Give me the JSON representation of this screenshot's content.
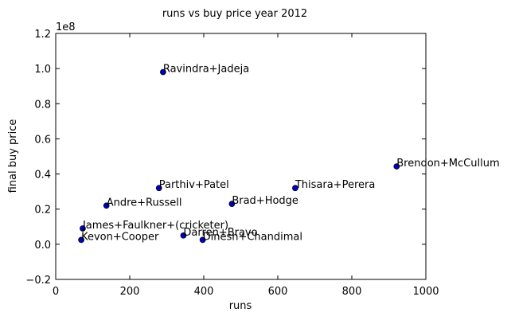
{
  "chart_data": {
    "type": "scatter",
    "title": "runs vs buy price year 2012",
    "xlabel": "runs",
    "ylabel": "final buy price",
    "y_offset_label": "1e8",
    "xlim": [
      0,
      1000
    ],
    "ylim": [
      -0.2,
      1.2
    ],
    "x_ticks": [
      "0",
      "200",
      "400",
      "600",
      "800",
      "1000"
    ],
    "y_ticks": [
      "−0.2",
      "0.0",
      "0.2",
      "0.4",
      "0.6",
      "0.8",
      "1.0",
      "1.2"
    ],
    "marker_color": "#0000bf",
    "grid": false,
    "points": [
      {
        "label": "Ravindra+Jadeja",
        "x": 290,
        "y": 0.98
      },
      {
        "label": "Brendon+McCullum",
        "x": 921,
        "y": 0.443
      },
      {
        "label": "Thisara+Perera",
        "x": 647,
        "y": 0.32
      },
      {
        "label": "Parthiv+Patel",
        "x": 279,
        "y": 0.32
      },
      {
        "label": "Brad+Hodge",
        "x": 476,
        "y": 0.23
      },
      {
        "label": "Andre+Russell",
        "x": 137,
        "y": 0.22
      },
      {
        "label": "James+Faulkner+(cricketer)",
        "x": 73,
        "y": 0.09
      },
      {
        "label": "Darren+Bravo",
        "x": 345,
        "y": 0.05
      },
      {
        "label": "Dinesh+Chandimal",
        "x": 397,
        "y": 0.025
      },
      {
        "label": "Kevon+Cooper",
        "x": 69,
        "y": 0.025
      }
    ]
  }
}
